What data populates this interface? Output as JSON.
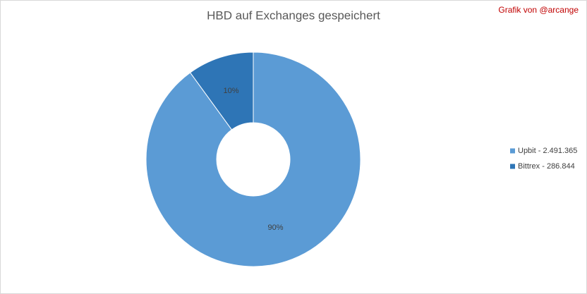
{
  "chart_data": {
    "type": "donut",
    "title": "HBD auf Exchanges gespeichert",
    "annotation": "Grafik von @arcange",
    "categories": [
      "Upbit - 2.491.365",
      "Bittrex - 286.844"
    ],
    "values": [
      90,
      10
    ],
    "value_labels": [
      "90%",
      "10%"
    ],
    "colors": [
      "#5b9bd5",
      "#2e75b6"
    ],
    "legend": "right"
  }
}
